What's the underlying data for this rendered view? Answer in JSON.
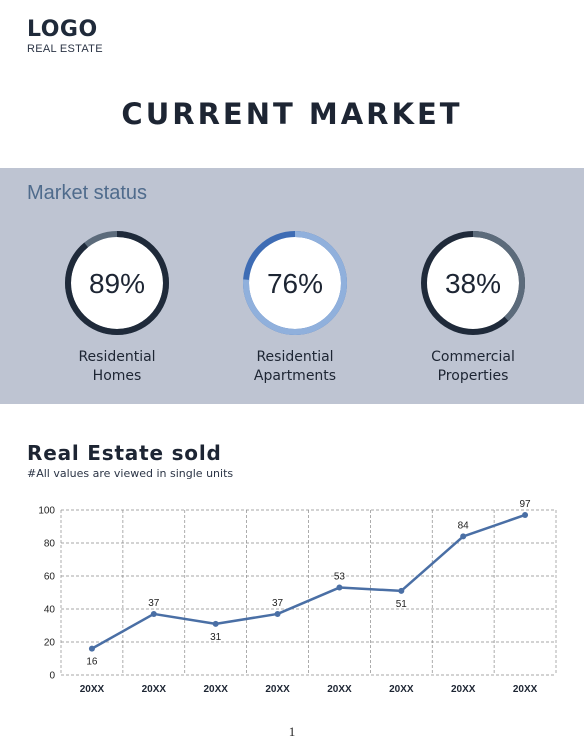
{
  "header": {
    "logo": "LOGO",
    "logo_subtitle": "REAL ESTATE",
    "title": "CURRENT MARKET"
  },
  "market_status": {
    "title": "Market status",
    "gauges": [
      {
        "value": 89,
        "value_text": "89%",
        "label_line1": "Residential",
        "label_line2": "Homes",
        "track_color": "#5c6b7b",
        "fill_color": "#1f2a3a",
        "inner_color": "#ffffff"
      },
      {
        "value": 76,
        "value_text": "76%",
        "label_line1": "Residential",
        "label_line2": "Apartments",
        "track_color": "#3e6cb4",
        "fill_color": "#90b0dc",
        "inner_color": "#ffffff"
      },
      {
        "value": 38,
        "value_text": "38%",
        "label_line1": "Commercial",
        "label_line2": "Properties",
        "track_color": "#1f2a3a",
        "fill_color": "#5c6b7b",
        "inner_color": "#ffffff"
      }
    ]
  },
  "sold": {
    "title": "Real Estate sold",
    "note": "#All values are viewed in single units"
  },
  "chart_data": {
    "type": "line",
    "categories": [
      "20XX",
      "20XX",
      "20XX",
      "20XX",
      "20XX",
      "20XX",
      "20XX",
      "20XX"
    ],
    "series": [
      {
        "values": [
          16,
          37,
          31,
          37,
          53,
          51,
          84,
          97
        ]
      }
    ],
    "ylim": [
      0,
      100
    ],
    "yticks": [
      0,
      20,
      40,
      60,
      80,
      100
    ],
    "grid": true,
    "line_color": "#4a6fa5",
    "data_labels": true
  },
  "footer": {
    "page_number": "1"
  }
}
